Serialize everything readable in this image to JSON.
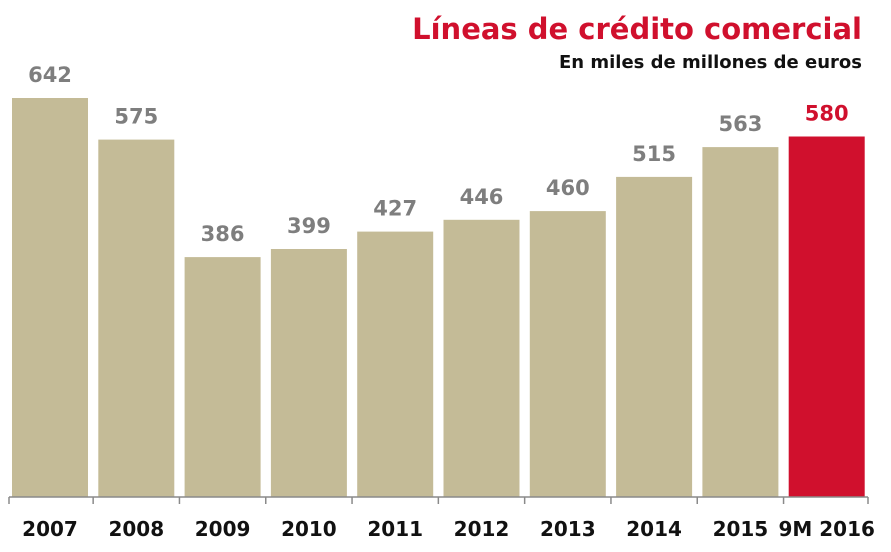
{
  "chart_data": {
    "type": "bar",
    "title": "Líneas de crédito comercial",
    "subtitle": "En miles de millones de euros",
    "xlabel": "",
    "ylabel": "",
    "categories": [
      "2007",
      "2008",
      "2009",
      "2010",
      "2011",
      "2012",
      "2013",
      "2014",
      "2015",
      "9M 2016"
    ],
    "values": [
      642,
      575,
      386,
      399,
      427,
      446,
      460,
      515,
      563,
      580
    ],
    "highlight_index": 9,
    "ylim": [
      0,
      642
    ],
    "grid": false,
    "legend": "none"
  },
  "colors": {
    "bar": "#c4bb97",
    "highlight_bar": "#d0102d",
    "title": "#d0102d",
    "value_label": "#7e7e7e",
    "highlight_value_label": "#d0102d",
    "category_label": "#111111",
    "subtitle": "#111111",
    "axis": "#8a8a8a"
  }
}
